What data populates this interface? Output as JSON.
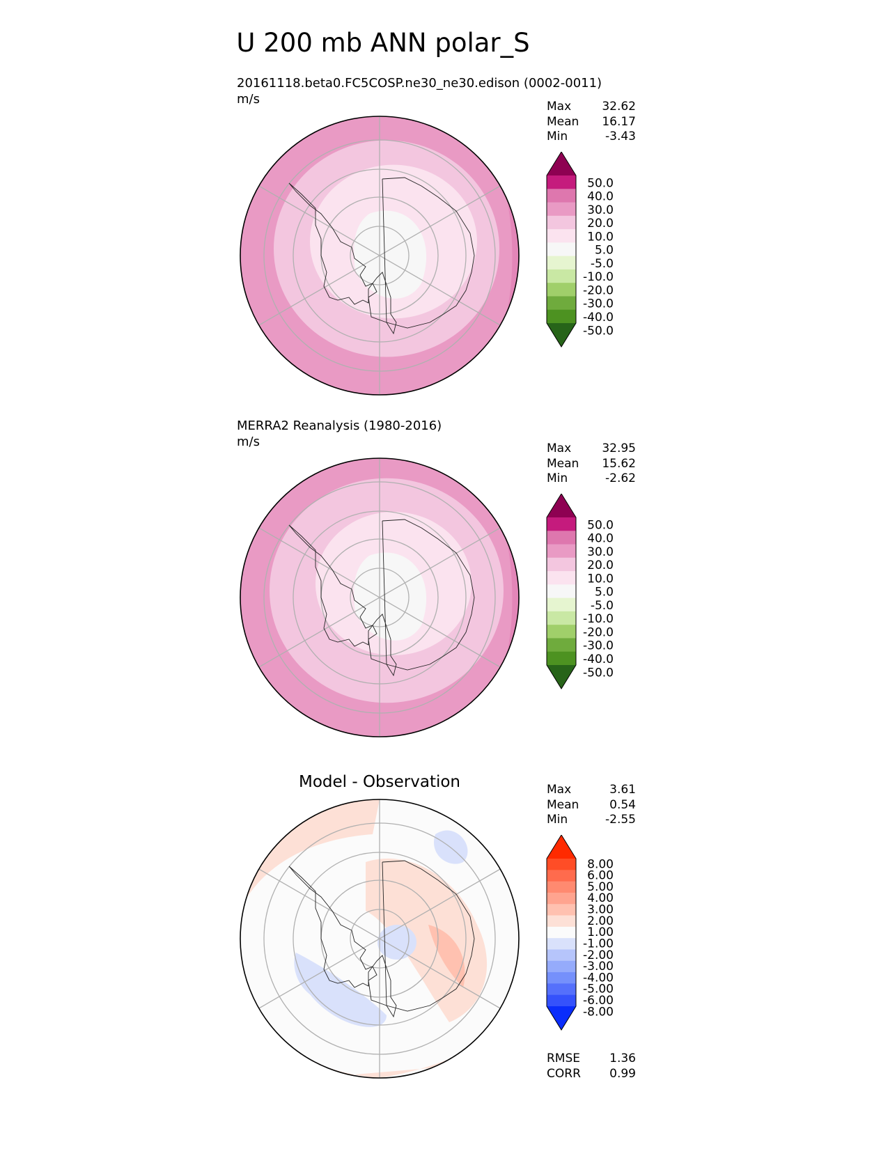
{
  "figure_title": "U 200 mb ANN polar_S",
  "panels": [
    {
      "title": "20161118.beta0.FC5COSP.ne30_ne30.edison (0002-0011)",
      "units": "m/s",
      "stats": [
        {
          "label": "Max",
          "value": "32.62"
        },
        {
          "label": "Mean",
          "value": "16.17"
        },
        {
          "label": "Min",
          "value": "-3.43"
        }
      ]
    },
    {
      "title": "MERRA2 Reanalysis (1980-2016)",
      "units": "m/s",
      "stats": [
        {
          "label": "Max",
          "value": "32.95"
        },
        {
          "label": "Mean",
          "value": "15.62"
        },
        {
          "label": "Min",
          "value": "-2.62"
        }
      ]
    },
    {
      "title": "Model - Observation",
      "units": "",
      "stats": [
        {
          "label": "Max",
          "value": "3.61"
        },
        {
          "label": "Mean",
          "value": "0.54"
        },
        {
          "label": "Min",
          "value": "-2.55"
        }
      ],
      "metrics": [
        {
          "label": "RMSE",
          "value": "1.36"
        },
        {
          "label": "CORR",
          "value": "0.99"
        }
      ]
    }
  ],
  "chart_data": [
    {
      "type": "heatmap",
      "projection": "south-polar-stereographic",
      "variable": "U 200 mb",
      "colorbar": {
        "levels": [
          "50.0",
          "40.0",
          "30.0",
          "20.0",
          "10.0",
          "5.0",
          "-5.0",
          "-10.0",
          "-20.0",
          "-30.0",
          "-40.0",
          "-50.0"
        ],
        "colors": [
          "#8e0152",
          "#c51b7d",
          "#de77ae",
          "#e99ac4",
          "#f3c6df",
          "#fbe3ef",
          "#f7f7f7",
          "#e6f5d0",
          "#c9e8a4",
          "#a0cf6a",
          "#6fab3d",
          "#4d9221",
          "#276419"
        ]
      },
      "field_bands": [
        {
          "radius_fraction": 1.0,
          "value_range": "20 to 30"
        },
        {
          "radius_fraction": 0.81,
          "value_range": "10 to 20"
        },
        {
          "radius_fraction": 0.6,
          "value_range": "5 to 10"
        },
        {
          "radius_fraction": 0.33,
          "value_range": "-5 to 5"
        }
      ]
    },
    {
      "type": "heatmap",
      "projection": "south-polar-stereographic",
      "variable": "U 200 mb",
      "colorbar": {
        "levels": [
          "50.0",
          "40.0",
          "30.0",
          "20.0",
          "10.0",
          "5.0",
          "-5.0",
          "-10.0",
          "-20.0",
          "-30.0",
          "-40.0",
          "-50.0"
        ],
        "colors": [
          "#8e0152",
          "#c51b7d",
          "#de77ae",
          "#e99ac4",
          "#f3c6df",
          "#fbe3ef",
          "#f7f7f7",
          "#e6f5d0",
          "#c9e8a4",
          "#a0cf6a",
          "#6fab3d",
          "#4d9221",
          "#276419"
        ]
      },
      "field_bands": [
        {
          "radius_fraction": 1.0,
          "value_range": "20 to 30"
        },
        {
          "radius_fraction": 0.84,
          "value_range": "10 to 20"
        },
        {
          "radius_fraction": 0.56,
          "value_range": "5 to 10"
        },
        {
          "radius_fraction": 0.33,
          "value_range": "-5 to 5"
        }
      ]
    },
    {
      "type": "heatmap",
      "projection": "south-polar-stereographic",
      "variable": "U 200 mb difference",
      "colorbar": {
        "levels": [
          "8.00",
          "6.00",
          "5.00",
          "4.00",
          "3.00",
          "2.00",
          "1.00",
          "-1.00",
          "-2.00",
          "-3.00",
          "-4.00",
          "-5.00",
          "-6.00",
          "-8.00"
        ],
        "colors": [
          "#ff2a00",
          "#ff4d26",
          "#ff6b4d",
          "#ff8a70",
          "#ffa48f",
          "#ffc1b0",
          "#fde0d6",
          "#fbfbfb",
          "#d9e1fb",
          "#b6c5fb",
          "#95abfb",
          "#7590fb",
          "#5570fb",
          "#3552fb",
          "#0a2dfb"
        ]
      }
    }
  ]
}
